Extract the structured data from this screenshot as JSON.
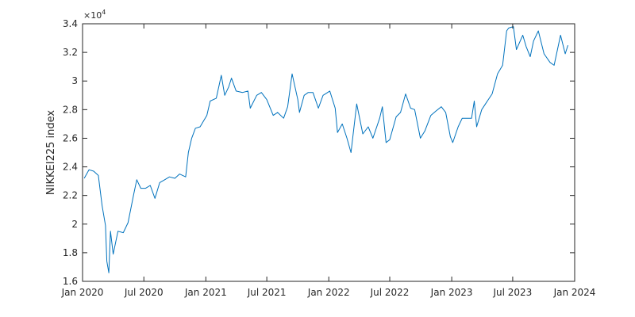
{
  "chart_data": {
    "type": "line",
    "title": "",
    "xlabel": "",
    "ylabel": "NIKKEI225 index",
    "y_exponent_base": "×10",
    "y_exponent_power": "4",
    "xlim": [
      "2020-01-01",
      "2024-01-01"
    ],
    "ylim": [
      1.6,
      3.4
    ],
    "x_ticks": [
      "2020-01-01",
      "2020-07-01",
      "2021-01-01",
      "2021-07-01",
      "2022-01-01",
      "2022-07-01",
      "2023-01-01",
      "2023-07-01",
      "2024-01-01"
    ],
    "x_tick_labels": [
      "Jan 2020",
      "Jul 2020",
      "Jan 2021",
      "Jul 2021",
      "Jan 2022",
      "Jul 2022",
      "Jan 2023",
      "Jul 2023",
      "Jan 2024"
    ],
    "y_ticks": [
      1.6,
      1.8,
      2.0,
      2.2,
      2.4,
      2.6,
      2.8,
      3.0,
      3.2,
      3.4
    ],
    "y_tick_labels": [
      "1.6",
      "1.8",
      "2",
      "2.2",
      "2.4",
      "2.6",
      "2.8",
      "3",
      "3.2",
      "3.4"
    ],
    "grid": false,
    "series": [
      {
        "color": "#0072BD",
        "x": [
          "2020-01-06",
          "2020-01-20",
          "2020-02-03",
          "2020-02-17",
          "2020-02-28",
          "2020-03-09",
          "2020-03-13",
          "2020-03-19",
          "2020-03-24",
          "2020-04-01",
          "2020-04-15",
          "2020-05-01",
          "2020-05-15",
          "2020-06-01",
          "2020-06-10",
          "2020-06-22",
          "2020-07-06",
          "2020-07-20",
          "2020-08-03",
          "2020-08-17",
          "2020-09-01",
          "2020-09-15",
          "2020-10-01",
          "2020-10-15",
          "2020-11-02",
          "2020-11-10",
          "2020-11-20",
          "2020-12-01",
          "2020-12-15",
          "2021-01-04",
          "2021-01-14",
          "2021-02-01",
          "2021-02-16",
          "2021-02-26",
          "2021-03-10",
          "2021-03-18",
          "2021-04-01",
          "2021-04-20",
          "2021-05-06",
          "2021-05-13",
          "2021-06-01",
          "2021-06-15",
          "2021-07-01",
          "2021-07-20",
          "2021-08-02",
          "2021-08-20",
          "2021-09-01",
          "2021-09-14",
          "2021-10-01",
          "2021-10-06",
          "2021-10-20",
          "2021-11-01",
          "2021-11-15",
          "2021-12-01",
          "2021-12-15",
          "2022-01-04",
          "2022-01-20",
          "2022-01-27",
          "2022-02-10",
          "2022-02-24",
          "2022-03-08",
          "2022-03-25",
          "2022-04-12",
          "2022-04-28",
          "2022-05-12",
          "2022-06-01",
          "2022-06-09",
          "2022-06-20",
          "2022-07-01",
          "2022-07-20",
          "2022-08-02",
          "2022-08-17",
          "2022-09-01",
          "2022-09-13",
          "2022-09-30",
          "2022-10-13",
          "2022-10-31",
          "2022-11-15",
          "2022-12-01",
          "2022-12-14",
          "2022-12-28",
          "2023-01-04",
          "2023-01-20",
          "2023-02-01",
          "2023-02-15",
          "2023-03-01",
          "2023-03-09",
          "2023-03-16",
          "2023-03-31",
          "2023-04-14",
          "2023-05-01",
          "2023-05-17",
          "2023-06-01",
          "2023-06-13",
          "2023-06-19",
          "2023-07-03",
          "2023-07-12",
          "2023-07-31",
          "2023-08-10",
          "2023-08-22",
          "2023-09-01",
          "2023-09-15",
          "2023-10-02",
          "2023-10-20",
          "2023-11-01",
          "2023-11-20",
          "2023-12-04",
          "2023-12-12"
        ],
        "values": [
          2.32,
          2.38,
          2.37,
          2.34,
          2.13,
          1.99,
          1.74,
          1.66,
          1.95,
          1.79,
          1.95,
          1.94,
          2.01,
          2.21,
          2.31,
          2.25,
          2.25,
          2.27,
          2.18,
          2.29,
          2.31,
          2.33,
          2.32,
          2.35,
          2.33,
          2.5,
          2.6,
          2.67,
          2.68,
          2.76,
          2.86,
          2.88,
          3.04,
          2.9,
          2.96,
          3.02,
          2.93,
          2.92,
          2.93,
          2.81,
          2.9,
          2.92,
          2.87,
          2.76,
          2.78,
          2.74,
          2.82,
          3.05,
          2.87,
          2.78,
          2.9,
          2.92,
          2.92,
          2.81,
          2.9,
          2.93,
          2.81,
          2.64,
          2.7,
          2.6,
          2.5,
          2.84,
          2.63,
          2.68,
          2.6,
          2.74,
          2.82,
          2.57,
          2.59,
          2.75,
          2.78,
          2.91,
          2.81,
          2.8,
          2.6,
          2.65,
          2.76,
          2.79,
          2.82,
          2.78,
          2.61,
          2.57,
          2.68,
          2.74,
          2.74,
          2.74,
          2.86,
          2.68,
          2.8,
          2.85,
          2.91,
          3.05,
          3.11,
          3.35,
          3.37,
          3.38,
          3.22,
          3.32,
          3.24,
          3.17,
          3.28,
          3.35,
          3.19,
          3.13,
          3.11,
          3.32,
          3.19,
          3.25
        ]
      }
    ]
  }
}
